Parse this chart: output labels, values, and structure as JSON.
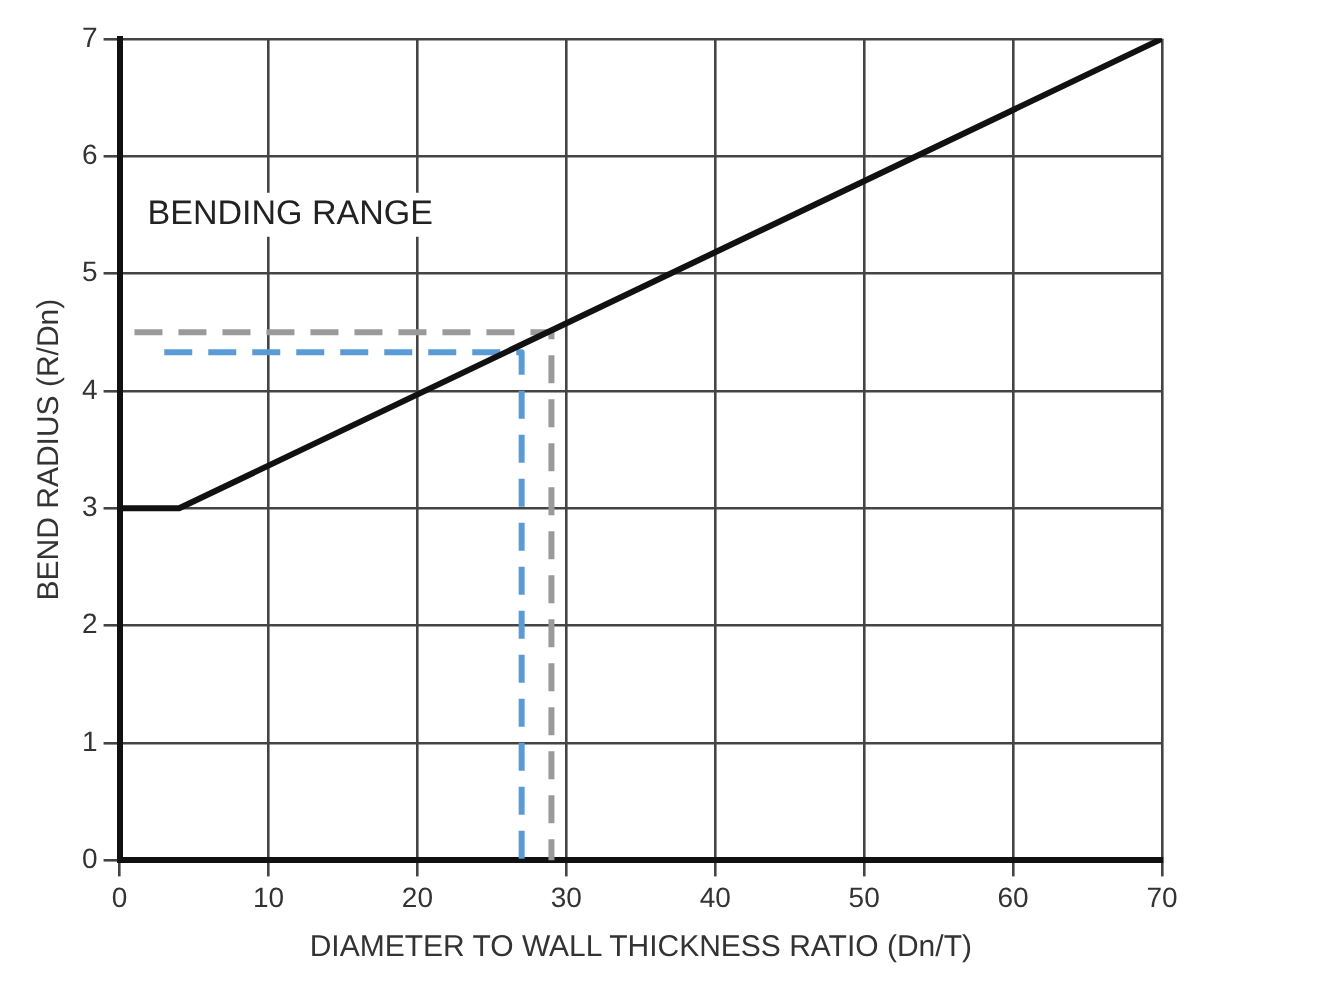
{
  "chart_data": {
    "type": "line",
    "xlabel": "DIAMETER TO WALL THICKNESS RATIO (Dn/T)",
    "ylabel": "BEND RADIUS (R/Dn)",
    "annotations": [
      "BENDING RANGE"
    ],
    "series": [
      {
        "color": "#111111",
        "x": [
          0,
          4,
          70
        ],
        "values": [
          3,
          3,
          7
        ],
        "line_style": "solid"
      },
      {
        "color": "#9a9a9a",
        "x": [
          1,
          29,
          29
        ],
        "values": [
          4.5,
          4.5,
          0
        ],
        "line_style": "dashed"
      },
      {
        "color": "#5b9bd5",
        "x": [
          3,
          27,
          27
        ],
        "values": [
          4.33,
          4.33,
          0
        ],
        "line_style": "dashed"
      }
    ],
    "xlim": [
      0,
      70
    ],
    "xticks": [
      0,
      10,
      20,
      30,
      40,
      50,
      60,
      70
    ],
    "ylim": [
      0,
      7
    ],
    "yticks": [
      0,
      1,
      2,
      3,
      4,
      5,
      6,
      7
    ],
    "grid": true,
    "legend": false,
    "marker": "none"
  }
}
